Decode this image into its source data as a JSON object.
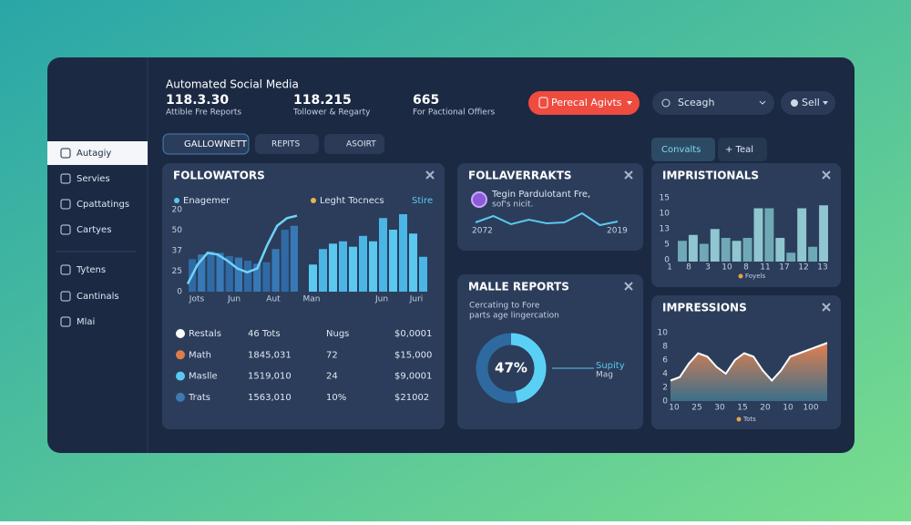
{
  "sidebar": {
    "items": [
      "Autagiy",
      "Servies",
      "Cpattatings",
      "Cartyes",
      "Tytens",
      "Cantinals",
      "Mlai"
    ]
  },
  "header": {
    "title": "Automated Social Media",
    "stats": [
      {
        "value": "118.3.30",
        "label": "Attible Fre Reports"
      },
      {
        "value": "118.215",
        "label": "Tollower & Regarty"
      },
      {
        "value": "665",
        "label": "For Pactional Offiers"
      }
    ],
    "button": "Perecal Agivts",
    "search": "Sceagh",
    "menu": "Sell"
  },
  "tabs": [
    "GALLOWNETT",
    "REPITS",
    "ASOIRT"
  ],
  "followators": {
    "title": "FOLLOWATORS",
    "legend": [
      "Enagemer",
      "Leght Tocnecs",
      "Stire"
    ],
    "y_labels": [
      "20",
      "50",
      "37",
      "25",
      "0"
    ],
    "x_labels": [
      "Jots",
      "Jun",
      "Aut",
      "Man",
      "Jun",
      "Juri"
    ],
    "ylim": [
      0,
      100
    ],
    "left_bars": [
      42,
      48,
      52,
      50,
      46,
      44,
      40,
      36,
      38,
      55,
      80,
      85
    ],
    "left_line": [
      10,
      35,
      50,
      48,
      40,
      30,
      25,
      30,
      60,
      85,
      95,
      98
    ],
    "right_bars": [
      35,
      55,
      62,
      65,
      58,
      72,
      65,
      95,
      80,
      100,
      75,
      45
    ],
    "table": [
      [
        "Restals",
        "46 Tots",
        "Nugs",
        "$0,0001"
      ],
      [
        "Math",
        "1845,031",
        "72",
        "$15,000"
      ],
      [
        "Maslle",
        "1519,010",
        "24",
        "$9,0001"
      ],
      [
        "Trats",
        "1563,010",
        "10%",
        "$21002"
      ]
    ]
  },
  "follaverrakts": {
    "title": "FOLLAVERRAKTS",
    "text": [
      "Tegin Pardulotant Fre,",
      "sof's nicit."
    ],
    "x_labels": [
      "2072",
      "2019"
    ],
    "ylim": [
      0,
      100
    ],
    "values": [
      40,
      75,
      30,
      55,
      35,
      40,
      90,
      25,
      45
    ]
  },
  "malle_reports": {
    "title": "MALLE REPORTS",
    "text": [
      "Cercating to Fore",
      "parts age lingercation"
    ],
    "value": 47,
    "value_label": "47%",
    "legend": [
      "Supity",
      "Mag"
    ]
  },
  "side_tabs": [
    "Convalts",
    "+ Teal"
  ],
  "impristionals": {
    "title": "IMPRISTIONALS",
    "y_labels": [
      "15",
      "10",
      "13",
      "5",
      "0"
    ],
    "x_labels": [
      "1",
      "8",
      "3",
      "10",
      "8",
      "11",
      "17",
      "12",
      "13"
    ],
    "ylim": [
      0,
      100
    ],
    "values": [
      35,
      45,
      30,
      55,
      40,
      35,
      40,
      90,
      90,
      40,
      15,
      90,
      25,
      95
    ],
    "legend": "Foyels"
  },
  "impressions": {
    "title": "IMPRESSIONS",
    "ylim": [
      0,
      10
    ],
    "yticks": [
      10,
      8,
      6,
      4,
      2,
      0
    ],
    "x_labels": [
      "10",
      "25",
      "30",
      "15",
      "20",
      "10",
      "100"
    ],
    "values": [
      3,
      3.5,
      5.5,
      7,
      6.5,
      5,
      4,
      6,
      7,
      6.5,
      4.5,
      3,
      4.5,
      6.5,
      7,
      7.5,
      8,
      8.5
    ],
    "legend": "Tots"
  }
}
